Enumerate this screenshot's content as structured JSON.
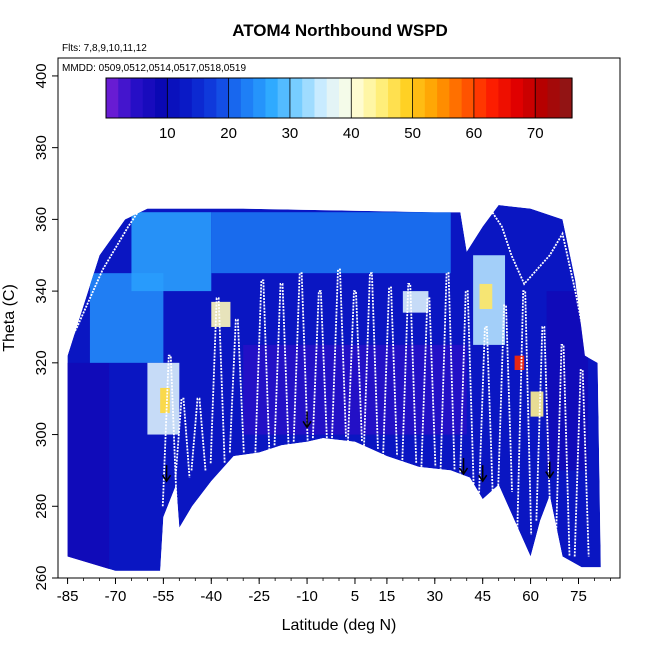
{
  "chart_data": {
    "type": "heatmap",
    "title": "ATOM4 Northbound WSPD",
    "annotations": [
      "Flts: 7,8,9,10,11,12",
      "MMDD: 0509,0512,0514,0517,0518,0519"
    ],
    "xlabel": "Latitude (deg N)",
    "ylabel": "Theta (C)",
    "xlim": [
      -88,
      88
    ],
    "ylim": [
      260,
      405
    ],
    "x_ticks": [
      -85,
      -70,
      -55,
      -40,
      -25,
      -10,
      5,
      15,
      30,
      45,
      60,
      75
    ],
    "y_ticks": [
      260,
      280,
      300,
      320,
      340,
      360,
      380,
      400
    ],
    "colorbar": {
      "range": [
        0,
        76
      ],
      "ticks": [
        10,
        20,
        30,
        40,
        50,
        60,
        70
      ],
      "colors": [
        "#7a1fd6",
        "#2a10c8",
        "#0a08b4",
        "#0a1cc8",
        "#1040e0",
        "#1c78f4",
        "#2ca8ff",
        "#7cd0ff",
        "#d8f0ff",
        "#ffffe0",
        "#fff080",
        "#ffd020",
        "#ffa000",
        "#ff6000",
        "#ff2000",
        "#e00000",
        "#b00000",
        "#8a1a1a"
      ]
    },
    "lower_boundary": [
      {
        "lat": -85,
        "theta": 266
      },
      {
        "lat": -70,
        "theta": 262
      },
      {
        "lat": -56,
        "theta": 262
      },
      {
        "lat": -55,
        "theta": 277
      },
      {
        "lat": -51,
        "theta": 286
      },
      {
        "lat": -50,
        "theta": 274
      },
      {
        "lat": -46,
        "theta": 280
      },
      {
        "lat": -40,
        "theta": 287
      },
      {
        "lat": -33,
        "theta": 294
      },
      {
        "lat": -25,
        "theta": 295
      },
      {
        "lat": -18,
        "theta": 297
      },
      {
        "lat": -10,
        "theta": 298
      },
      {
        "lat": -5,
        "theta": 299
      },
      {
        "lat": 5,
        "theta": 298
      },
      {
        "lat": 15,
        "theta": 294
      },
      {
        "lat": 25,
        "theta": 291
      },
      {
        "lat": 35,
        "theta": 290
      },
      {
        "lat": 41,
        "theta": 288
      },
      {
        "lat": 45,
        "theta": 282
      },
      {
        "lat": 50,
        "theta": 286
      },
      {
        "lat": 57,
        "theta": 272
      },
      {
        "lat": 60,
        "theta": 266
      },
      {
        "lat": 63,
        "theta": 276
      },
      {
        "lat": 66,
        "theta": 283
      },
      {
        "lat": 70,
        "theta": 266
      },
      {
        "lat": 76,
        "theta": 263
      },
      {
        "lat": 82,
        "theta": 263
      }
    ],
    "upper_boundary": [
      {
        "lat": -85,
        "theta": 322
      },
      {
        "lat": -75,
        "theta": 350
      },
      {
        "lat": -67,
        "theta": 360
      },
      {
        "lat": -60,
        "theta": 363
      },
      {
        "lat": -30,
        "theta": 363
      },
      {
        "lat": 30,
        "theta": 362
      },
      {
        "lat": 38,
        "theta": 362
      },
      {
        "lat": 40,
        "theta": 351
      },
      {
        "lat": 45,
        "theta": 358
      },
      {
        "lat": 50,
        "theta": 364
      },
      {
        "lat": 60,
        "theta": 363
      },
      {
        "lat": 70,
        "theta": 360
      },
      {
        "lat": 74,
        "theta": 343
      },
      {
        "lat": 77,
        "theta": 322
      },
      {
        "lat": 81,
        "theta": 320
      }
    ],
    "wind_speed_patches": [
      {
        "lat_min": -85,
        "lat_max": -72,
        "theta_min": 262,
        "theta_max": 320,
        "wspd": 8
      },
      {
        "lat_min": -78,
        "lat_max": -55,
        "theta_min": 320,
        "theta_max": 345,
        "wspd": 24
      },
      {
        "lat_min": -65,
        "lat_max": -40,
        "theta_min": 340,
        "theta_max": 362,
        "wspd": 26
      },
      {
        "lat_min": -60,
        "lat_max": -50,
        "theta_min": 300,
        "theta_max": 320,
        "wspd": 36
      },
      {
        "lat_min": -56,
        "lat_max": -53,
        "theta_min": 306,
        "theta_max": 313,
        "wspd": 48
      },
      {
        "lat_min": -40,
        "lat_max": 35,
        "theta_min": 345,
        "theta_max": 362,
        "wspd": 22
      },
      {
        "lat_min": -30,
        "lat_max": 40,
        "theta_min": 300,
        "theta_max": 325,
        "wspd": 5
      },
      {
        "lat_min": -40,
        "lat_max": -34,
        "theta_min": 330,
        "theta_max": 337,
        "wspd": 42
      },
      {
        "lat_min": 20,
        "lat_max": 28,
        "theta_min": 334,
        "theta_max": 340,
        "wspd": 36
      },
      {
        "lat_min": 42,
        "lat_max": 52,
        "theta_min": 325,
        "theta_max": 350,
        "wspd": 34
      },
      {
        "lat_min": 44,
        "lat_max": 48,
        "theta_min": 335,
        "theta_max": 342,
        "wspd": 46
      },
      {
        "lat_min": 55,
        "lat_max": 58,
        "theta_min": 318,
        "theta_max": 322,
        "wspd": 62
      },
      {
        "lat_min": 60,
        "lat_max": 64,
        "theta_min": 305,
        "theta_max": 312,
        "wspd": 44
      },
      {
        "lat_min": 65,
        "lat_max": 78,
        "theta_min": 290,
        "theta_max": 340,
        "wspd": 8
      }
    ],
    "flight_profiles": [
      {
        "lat": -53,
        "theta_min": 280,
        "theta_max": 322
      },
      {
        "lat": -49,
        "theta_min": 288,
        "theta_max": 310
      },
      {
        "lat": -44,
        "theta_min": 290,
        "theta_max": 310
      },
      {
        "lat": -38,
        "theta_min": 292,
        "theta_max": 338
      },
      {
        "lat": -32,
        "theta_min": 295,
        "theta_max": 332
      },
      {
        "lat": -24,
        "theta_min": 295,
        "theta_max": 343
      },
      {
        "lat": -18,
        "theta_min": 297,
        "theta_max": 342
      },
      {
        "lat": -12,
        "theta_min": 298,
        "theta_max": 345
      },
      {
        "lat": -6,
        "theta_min": 299,
        "theta_max": 340
      },
      {
        "lat": 0,
        "theta_min": 299,
        "theta_max": 346
      },
      {
        "lat": 5,
        "theta_min": 298,
        "theta_max": 340
      },
      {
        "lat": 10,
        "theta_min": 296,
        "theta_max": 345
      },
      {
        "lat": 16,
        "theta_min": 294,
        "theta_max": 341
      },
      {
        "lat": 22,
        "theta_min": 292,
        "theta_max": 342
      },
      {
        "lat": 28,
        "theta_min": 291,
        "theta_max": 338
      },
      {
        "lat": 34,
        "theta_min": 290,
        "theta_max": 345
      },
      {
        "lat": 40,
        "theta_min": 285,
        "theta_max": 340
      },
      {
        "lat": 46,
        "theta_min": 282,
        "theta_max": 330
      },
      {
        "lat": 52,
        "theta_min": 284,
        "theta_max": 336
      },
      {
        "lat": 58,
        "theta_min": 272,
        "theta_max": 340
      },
      {
        "lat": 64,
        "theta_min": 276,
        "theta_max": 330
      },
      {
        "lat": 70,
        "theta_min": 266,
        "theta_max": 325
      },
      {
        "lat": 76,
        "theta_min": 266,
        "theta_max": 318
      }
    ],
    "upper_tracks": [
      [
        {
          "lat": -85,
          "theta": 325
        },
        {
          "lat": -82,
          "theta": 330
        },
        {
          "lat": -78,
          "theta": 338
        },
        {
          "lat": -74,
          "theta": 346
        },
        {
          "lat": -70,
          "theta": 352
        },
        {
          "lat": -66,
          "theta": 358
        },
        {
          "lat": -63,
          "theta": 362
        },
        {
          "lat": -61,
          "theta": 363
        }
      ],
      [
        {
          "lat": 40,
          "theta": 353
        },
        {
          "lat": 44,
          "theta": 358
        },
        {
          "lat": 48,
          "theta": 362
        },
        {
          "lat": 51,
          "theta": 358
        },
        {
          "lat": 54,
          "theta": 350
        },
        {
          "lat": 58,
          "theta": 342
        },
        {
          "lat": 62,
          "theta": 346
        },
        {
          "lat": 66,
          "theta": 350
        },
        {
          "lat": 70,
          "theta": 356
        },
        {
          "lat": 74,
          "theta": 340
        },
        {
          "lat": 78,
          "theta": 322
        }
      ]
    ],
    "arrows": [
      {
        "lat": -54,
        "theta": 287
      },
      {
        "lat": -10,
        "theta": 302
      },
      {
        "lat": 39,
        "theta": 289
      },
      {
        "lat": 45,
        "theta": 287
      },
      {
        "lat": 66,
        "theta": 288
      }
    ]
  }
}
